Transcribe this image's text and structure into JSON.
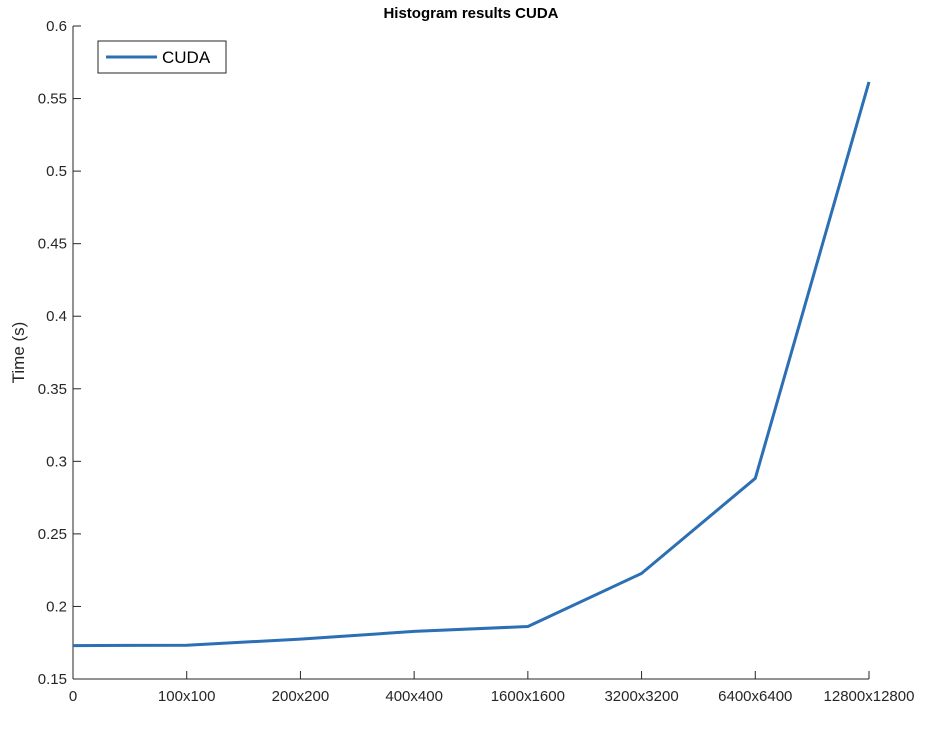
{
  "chart_data": {
    "type": "line",
    "title": "Histogram results CUDA",
    "xlabel": "",
    "ylabel": "Time (s)",
    "categories": [
      "0",
      "100x100",
      "200x200",
      "400x400",
      "1600x1600",
      "3200x3200",
      "6400x6400",
      "12800x12800"
    ],
    "ylim": [
      0.15,
      0.6
    ],
    "yticks": [
      0.15,
      0.2,
      0.25,
      0.3,
      0.35,
      0.4,
      0.45,
      0.5,
      0.55,
      0.6
    ],
    "ytick_labels": [
      "0.15",
      "0.2",
      "0.25",
      "0.3",
      "0.35",
      "0.4",
      "0.45",
      "0.5",
      "0.55",
      "0.6"
    ],
    "grid": false,
    "legend_position": "top-left",
    "series": [
      {
        "name": "CUDA",
        "color": "#2c6fb5",
        "values": [
          0.173,
          0.1733,
          0.1775,
          0.1828,
          0.1862,
          0.2228,
          0.2883,
          0.5615
        ]
      }
    ]
  }
}
